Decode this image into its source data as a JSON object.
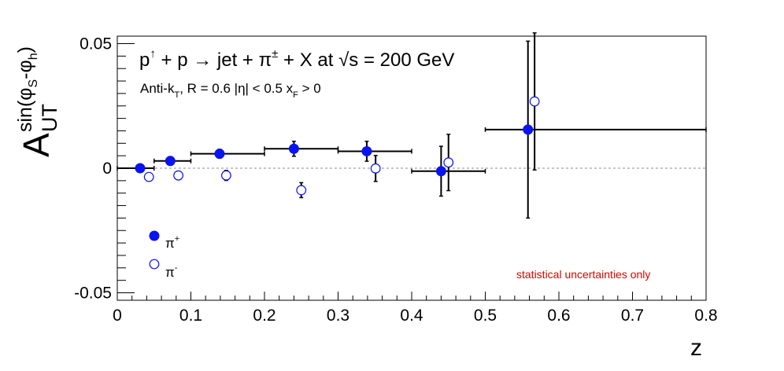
{
  "chart_data": {
    "type": "scatter",
    "title": "",
    "reaction": {
      "p1": "p",
      "up": "↑",
      "mid": " + p → jet + π",
      "pm": "±",
      "tail": " + X at  ",
      "root": "√",
      "s_tail": "s = 200 GeV"
    },
    "cuts": {
      "pre": "Anti-k",
      "sub_t": "T",
      "mid": ", R = 0.6   |η| < 0.5   x",
      "sub_f": "F",
      "post": " > 0"
    },
    "xlabel": "z",
    "ylabel": {
      "main": "A",
      "sub": "UT",
      "sup_pre": "sin(φ",
      "sup_s": "S",
      "sup_mid": "-φ",
      "sup_h": "h",
      "sup_post": ")"
    },
    "xlim": [
      0,
      0.8
    ],
    "ylim": [
      -0.053,
      0.053
    ],
    "x_major_ticks": [
      0,
      0.1,
      0.2,
      0.3,
      0.4,
      0.5,
      0.6,
      0.7,
      0.8
    ],
    "x_tick_labels": [
      "0",
      "0.1",
      "0.2",
      "0.3",
      "0.4",
      "0.5",
      "0.6",
      "0.7",
      "0.8"
    ],
    "y_major_ticks": [
      -0.05,
      0,
      0.05
    ],
    "y_tick_labels": [
      "-0.05",
      "0",
      "0.05"
    ],
    "zero_line": true,
    "legend_position": "bottom-left",
    "annotation": "statistical uncertainties only",
    "colors": {
      "pi_plus": "#0a14f0",
      "pi_minus": "#0a14f0",
      "error_bars": "#000000",
      "zero_line": "#b4b4b4",
      "annotation": "#e00000"
    },
    "series": [
      {
        "name": "π",
        "charge": "+",
        "marker": "filled-circle",
        "x": [
          0.031,
          0.072,
          0.139,
          0.24,
          0.339,
          0.44,
          0.558
        ],
        "y": [
          0.0,
          0.0029,
          0.0058,
          0.0078,
          0.0068,
          -0.0012,
          0.0155
        ],
        "xerr_low": [
          0.031,
          0.022,
          0.039,
          0.04,
          0.039,
          0.04,
          0.058
        ],
        "xerr_high": [
          0.019,
          0.028,
          0.061,
          0.06,
          0.061,
          0.06,
          0.242
        ],
        "yerr": [
          0.0012,
          0.0017,
          0.0018,
          0.003,
          0.004,
          0.01,
          0.0355
        ]
      },
      {
        "name": "π",
        "charge": "-",
        "marker": "open-circle",
        "x": [
          0.043,
          0.083,
          0.148,
          0.25,
          0.351,
          0.45,
          0.567
        ],
        "y": [
          -0.0035,
          -0.0029,
          -0.0029,
          -0.0088,
          -0.0001,
          0.0023,
          0.0268
        ],
        "xerr_low": [
          0,
          0,
          0,
          0,
          0,
          0,
          0
        ],
        "xerr_high": [
          0,
          0,
          0,
          0,
          0,
          0,
          0
        ],
        "yerr": [
          0.0014,
          0.0017,
          0.002,
          0.003,
          0.0052,
          0.0113,
          0.0275
        ]
      }
    ]
  }
}
